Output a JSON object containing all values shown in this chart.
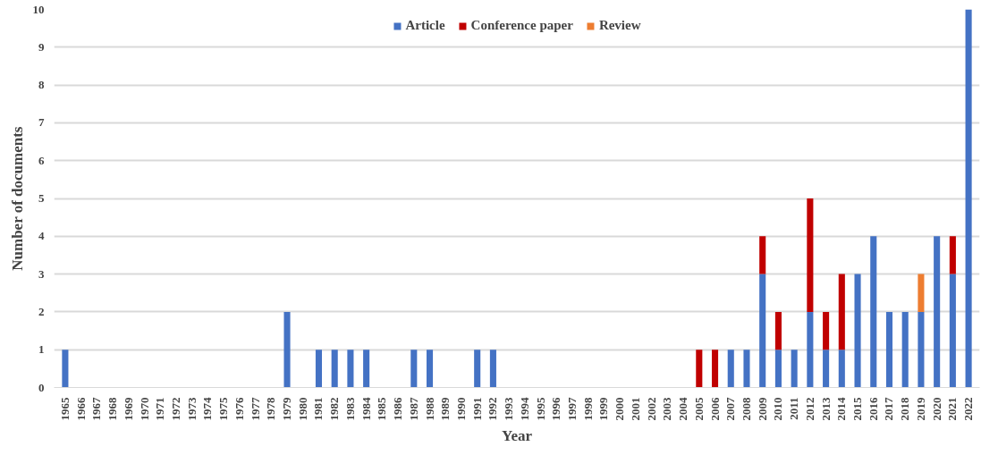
{
  "chart_data": {
    "type": "bar",
    "stacked": true,
    "xlabel": "Year",
    "ylabel": "Number of documents",
    "categories": [
      "1965",
      "1966",
      "1967",
      "1968",
      "1969",
      "1970",
      "1971",
      "1972",
      "1973",
      "1974",
      "1975",
      "1976",
      "1977",
      "1978",
      "1979",
      "1980",
      "1981",
      "1982",
      "1983",
      "1984",
      "1985",
      "1986",
      "1987",
      "1988",
      "1989",
      "1990",
      "1991",
      "1992",
      "1993",
      "1994",
      "1995",
      "1996",
      "1997",
      "1998",
      "1999",
      "2000",
      "2001",
      "2002",
      "2003",
      "2004",
      "2005",
      "2006",
      "2007",
      "2008",
      "2009",
      "2010",
      "2011",
      "2012",
      "2013",
      "2014",
      "2015",
      "2016",
      "2017",
      "2018",
      "2019",
      "2020",
      "2021",
      "2022"
    ],
    "series": [
      {
        "name": "Article",
        "color": "#4472c4",
        "values": [
          1,
          0,
          0,
          0,
          0,
          0,
          0,
          0,
          0,
          0,
          0,
          0,
          0,
          0,
          2,
          0,
          1,
          1,
          1,
          1,
          0,
          0,
          1,
          1,
          0,
          0,
          1,
          1,
          0,
          0,
          0,
          0,
          0,
          0,
          0,
          0,
          0,
          0,
          0,
          0,
          0,
          0,
          1,
          1,
          3,
          1,
          1,
          2,
          1,
          1,
          3,
          4,
          2,
          2,
          2,
          4,
          3,
          10
        ]
      },
      {
        "name": "Conference paper",
        "color": "#c00000",
        "values": [
          0,
          0,
          0,
          0,
          0,
          0,
          0,
          0,
          0,
          0,
          0,
          0,
          0,
          0,
          0,
          0,
          0,
          0,
          0,
          0,
          0,
          0,
          0,
          0,
          0,
          0,
          0,
          0,
          0,
          0,
          0,
          0,
          0,
          0,
          0,
          0,
          0,
          0,
          0,
          0,
          1,
          1,
          0,
          0,
          1,
          1,
          0,
          3,
          1,
          2,
          0,
          0,
          0,
          0,
          0,
          0,
          1,
          0
        ]
      },
      {
        "name": "Review",
        "color": "#ed7d31",
        "values": [
          0,
          0,
          0,
          0,
          0,
          0,
          0,
          0,
          0,
          0,
          0,
          0,
          0,
          0,
          0,
          0,
          0,
          0,
          0,
          0,
          0,
          0,
          0,
          0,
          0,
          0,
          0,
          0,
          0,
          0,
          0,
          0,
          0,
          0,
          0,
          0,
          0,
          0,
          0,
          0,
          0,
          0,
          0,
          0,
          0,
          0,
          0,
          0,
          0,
          0,
          0,
          0,
          0,
          0,
          1,
          0,
          0,
          0
        ]
      }
    ],
    "ylim": [
      0,
      10
    ],
    "yticks": [
      0,
      1,
      2,
      3,
      4,
      5,
      6,
      7,
      8,
      9,
      10
    ],
    "grid": "y",
    "legend": "top"
  }
}
